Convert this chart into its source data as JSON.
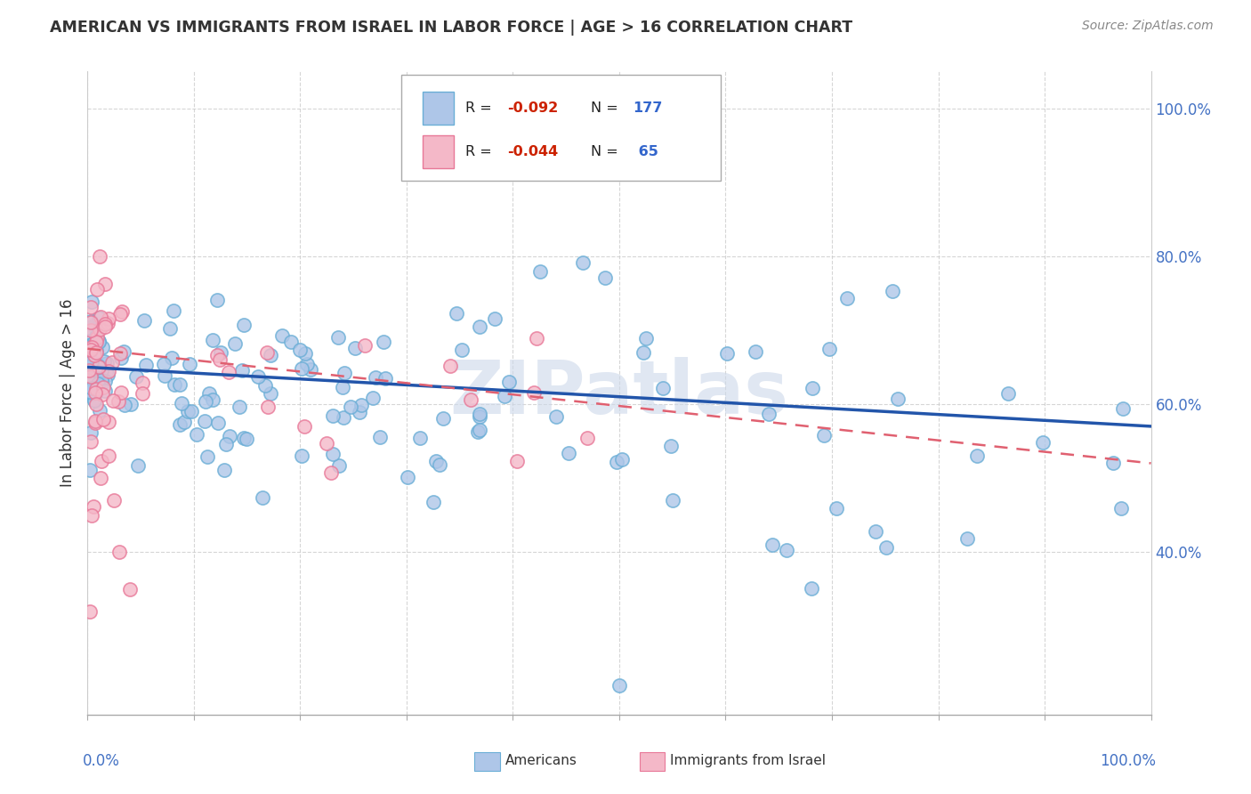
{
  "title": "AMERICAN VS IMMIGRANTS FROM ISRAEL IN LABOR FORCE | AGE > 16 CORRELATION CHART",
  "source": "Source: ZipAtlas.com",
  "ylabel": "In Labor Force | Age > 16",
  "color_americans": "#aec6e8",
  "color_americans_edge": "#6aaed6",
  "color_immigrants": "#f4b8c8",
  "color_immigrants_edge": "#e87898",
  "trend_color_americans": "#2255aa",
  "trend_color_immigrants": "#e06070",
  "watermark": "ZIPatlas",
  "watermark_color": "#ccd8ea",
  "background_color": "#ffffff",
  "grid_color": "#cccccc",
  "legend_r1_val": "-0.092",
  "legend_n1_val": "177",
  "legend_r2_val": "-0.044",
  "legend_n2_val": "65",
  "xlim": [
    0.0,
    1.0
  ],
  "ylim": [
    0.18,
    1.05
  ],
  "ytick_vals": [
    0.4,
    0.6,
    0.8,
    1.0
  ],
  "ytick_labels": [
    "40.0%",
    "60.0%",
    "80.0%",
    "100.0%"
  ]
}
